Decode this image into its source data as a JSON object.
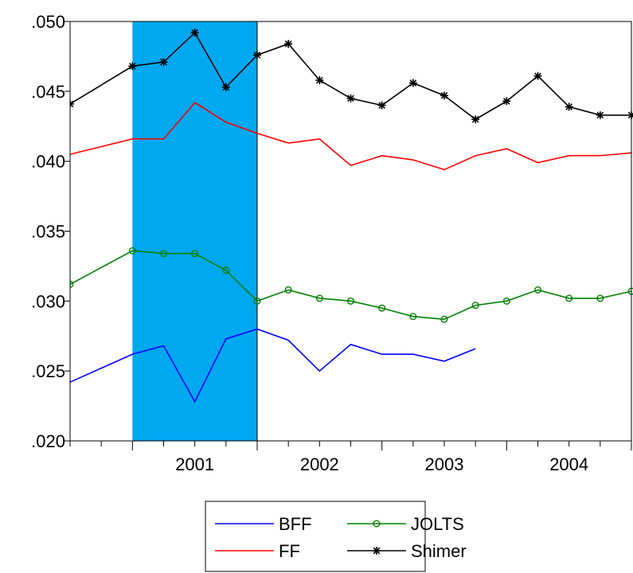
{
  "chart_data": {
    "type": "line",
    "title": "",
    "xlabel": "",
    "ylabel": "",
    "x_tick_labels": [
      "2001",
      "2002",
      "2003",
      "2004"
    ],
    "y_tick_labels": [
      ".020",
      ".025",
      ".030",
      ".035",
      ".040",
      ".045",
      ".050"
    ],
    "ylim": [
      0.02,
      0.05
    ],
    "xlim": [
      2000.25,
      2004.75
    ],
    "grid": false,
    "legend_position": "bottom-center",
    "shaded_region": {
      "from": 2000.75,
      "to": 2001.75,
      "color": "#00a8f0"
    },
    "series": [
      {
        "name": "BFF",
        "color": "#0000ff",
        "marker": "none",
        "x": [
          2000.25,
          2000.75,
          2001.0,
          2001.25,
          2001.5,
          2001.75,
          2002.0,
          2002.25,
          2002.5,
          2002.75,
          2003.0,
          2003.25,
          2003.5
        ],
        "y": [
          0.0242,
          0.0262,
          0.0268,
          0.0228,
          0.0273,
          0.028,
          0.0272,
          0.025,
          0.0269,
          0.0262,
          0.0262,
          0.0257,
          0.0266
        ]
      },
      {
        "name": "FF",
        "color": "#ff0000",
        "marker": "none",
        "x": [
          2000.25,
          2000.75,
          2001.0,
          2001.25,
          2001.5,
          2001.75,
          2002.0,
          2002.25,
          2002.5,
          2002.75,
          2003.0,
          2003.25,
          2003.5,
          2003.75,
          2004.0,
          2004.25,
          2004.5,
          2004.75
        ],
        "y": [
          0.0405,
          0.0416,
          0.0416,
          0.0442,
          0.0428,
          0.042,
          0.0413,
          0.0416,
          0.0397,
          0.0404,
          0.0401,
          0.0394,
          0.0404,
          0.0409,
          0.0399,
          0.0404,
          0.0404,
          0.0406
        ]
      },
      {
        "name": "JOLTS",
        "color": "#008000",
        "marker": "circle",
        "x": [
          2000.25,
          2000.75,
          2001.0,
          2001.25,
          2001.5,
          2001.75,
          2002.0,
          2002.25,
          2002.5,
          2002.75,
          2003.0,
          2003.25,
          2003.5,
          2003.75,
          2004.0,
          2004.25,
          2004.5,
          2004.75
        ],
        "y": [
          0.0312,
          0.0336,
          0.0334,
          0.0334,
          0.0322,
          0.03,
          0.0308,
          0.0302,
          0.03,
          0.0295,
          0.0289,
          0.0287,
          0.0297,
          0.03,
          0.0308,
          0.0302,
          0.0302,
          0.0307
        ]
      },
      {
        "name": "Shimer",
        "color": "#000000",
        "marker": "star",
        "x": [
          2000.25,
          2000.75,
          2001.0,
          2001.25,
          2001.5,
          2001.75,
          2002.0,
          2002.25,
          2002.5,
          2002.75,
          2003.0,
          2003.25,
          2003.5,
          2003.75,
          2004.0,
          2004.25,
          2004.5,
          2004.75
        ],
        "y": [
          0.0441,
          0.0468,
          0.0471,
          0.0492,
          0.0453,
          0.0476,
          0.0484,
          0.0458,
          0.0445,
          0.044,
          0.0456,
          0.0447,
          0.043,
          0.0443,
          0.0461,
          0.0439,
          0.0433,
          0.0433
        ]
      }
    ]
  },
  "legend": {
    "entries": [
      "BFF",
      "JOLTS",
      "FF",
      "Shimer"
    ]
  }
}
